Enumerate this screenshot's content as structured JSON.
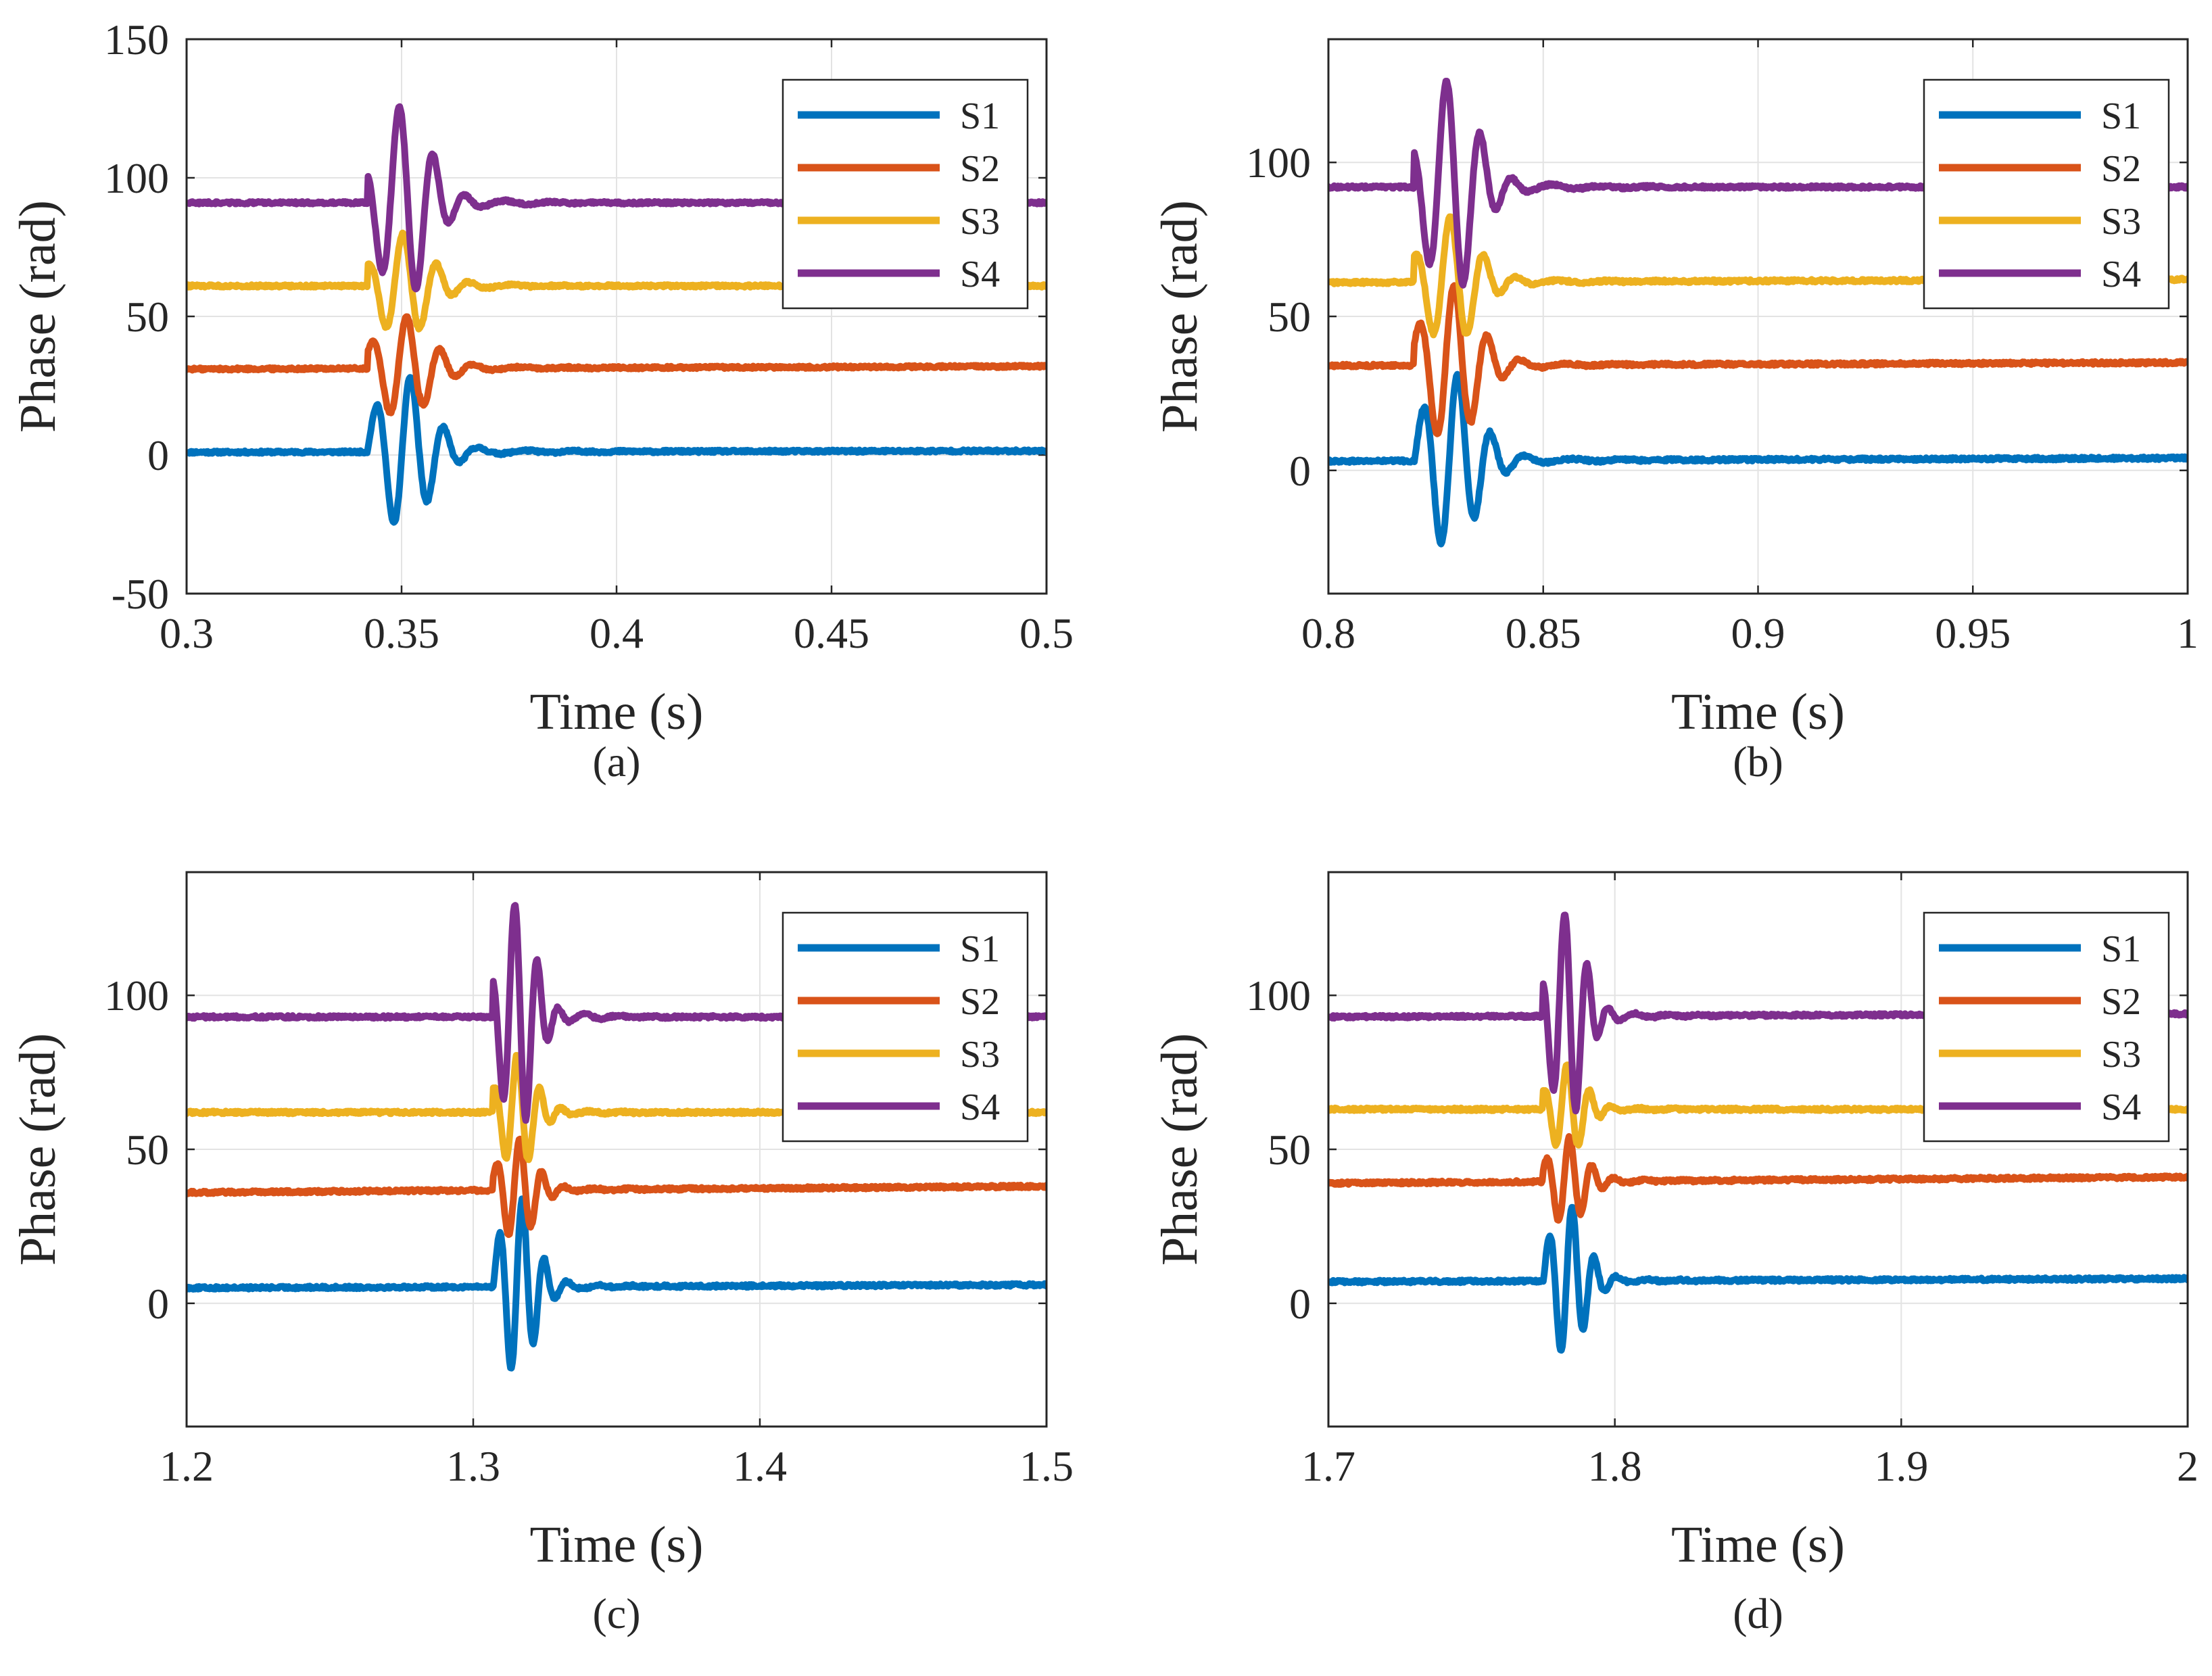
{
  "series_colors": {
    "S1": "#0072BD",
    "S2": "#D95319",
    "S3": "#EDB120",
    "S4": "#7E2F8E"
  },
  "chart_data": [
    {
      "type": "line",
      "caption": "(a)",
      "xlabel": "Time (s)",
      "ylabel": "Phase (rad)",
      "xlim": [
        0.3,
        0.5
      ],
      "ylim": [
        -50,
        150
      ],
      "xticks": [
        "0.3",
        "0.35",
        "0.4",
        "0.45",
        "0.5"
      ],
      "yticks": [
        "-50",
        "0",
        "50",
        "100",
        "150"
      ],
      "grid": true,
      "legend": [
        "S1",
        "S2",
        "S3",
        "S4"
      ],
      "legend_position": "top-right",
      "transient_start": 0.342,
      "series": [
        {
          "name": "S1",
          "baseline": [
            1,
            1.5
          ],
          "amplitude": 27
        },
        {
          "name": "S2",
          "baseline": [
            31,
            32
          ],
          "amplitude": 18
        },
        {
          "name": "S3",
          "baseline": [
            61,
            61
          ],
          "amplitude": 18
        },
        {
          "name": "S4",
          "baseline": [
            91,
            91
          ],
          "amplitude": 33
        }
      ]
    },
    {
      "type": "line",
      "caption": "(b)",
      "xlabel": "Time (s)",
      "ylabel": "Phase (rad)",
      "xlim": [
        0.8,
        1.0
      ],
      "ylim": [
        -40,
        140
      ],
      "xticks": [
        "0.8",
        "0.85",
        "0.9",
        "0.95",
        "1"
      ],
      "yticks": [
        "0",
        "50",
        "100"
      ],
      "grid": true,
      "legend": [
        "S1",
        "S2",
        "S3",
        "S4"
      ],
      "legend_position": "top-right",
      "transient_start": 0.82,
      "series": [
        {
          "name": "S1",
          "baseline": [
            3,
            4
          ],
          "amplitude": 28
        },
        {
          "name": "S2",
          "baseline": [
            34,
            35
          ],
          "amplitude": 25
        },
        {
          "name": "S3",
          "baseline": [
            61,
            62
          ],
          "amplitude": 20
        },
        {
          "name": "S4",
          "baseline": [
            92,
            92
          ],
          "amplitude": 33
        }
      ]
    },
    {
      "type": "line",
      "caption": "(c)",
      "xlabel": "Time (s)",
      "ylabel": "Phase (rad)",
      "xlim": [
        1.2,
        1.5
      ],
      "ylim": [
        -40,
        140
      ],
      "xticks": [
        "1.2",
        "1.3",
        "1.4",
        "1.5"
      ],
      "yticks": [
        "0",
        "50",
        "100"
      ],
      "grid": true,
      "legend": [
        "S1",
        "S2",
        "S3",
        "S4"
      ],
      "legend_position": "top-right",
      "transient_start": 1.307,
      "series": [
        {
          "name": "S1",
          "baseline": [
            5,
            6
          ],
          "amplitude": 28
        },
        {
          "name": "S2",
          "baseline": [
            36,
            38
          ],
          "amplitude": 16
        },
        {
          "name": "S3",
          "baseline": [
            62,
            62
          ],
          "amplitude": 18
        },
        {
          "name": "S4",
          "baseline": [
            93,
            93
          ],
          "amplitude": 35
        }
      ]
    },
    {
      "type": "line",
      "caption": "(d)",
      "xlabel": "Time (s)",
      "ylabel": "Phase (rad)",
      "xlim": [
        1.7,
        2.0
      ],
      "ylim": [
        -40,
        140
      ],
      "xticks": [
        "1.7",
        "1.8",
        "1.9",
        "2"
      ],
      "yticks": [
        "0",
        "50",
        "100"
      ],
      "grid": true,
      "legend": [
        "S1",
        "S2",
        "S3",
        "S4"
      ],
      "legend_position": "top-right",
      "transient_start": 1.775,
      "series": [
        {
          "name": "S1",
          "baseline": [
            7,
            8
          ],
          "amplitude": 24
        },
        {
          "name": "S2",
          "baseline": [
            39,
            41
          ],
          "amplitude": 14
        },
        {
          "name": "S3",
          "baseline": [
            63,
            63
          ],
          "amplitude": 14
        },
        {
          "name": "S4",
          "baseline": [
            93,
            94
          ],
          "amplitude": 32
        }
      ]
    }
  ]
}
